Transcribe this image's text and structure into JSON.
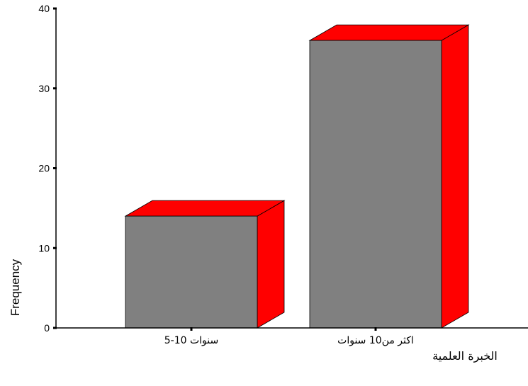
{
  "chart_data": {
    "type": "bar",
    "style": "3d",
    "categories": [
      "5-10 سنوات",
      "اكثر من10 سنوات"
    ],
    "values": [
      14,
      36
    ],
    "ylabel": "Frequency",
    "xlabel": "الخبرة العلمية",
    "ylim": [
      0,
      40
    ],
    "yticks": [
      0,
      10,
      20,
      30,
      40
    ],
    "grid": false,
    "colors": {
      "front": "#808080",
      "top": "#ff0000",
      "side": "#ff0000",
      "edge": "#000000"
    }
  }
}
